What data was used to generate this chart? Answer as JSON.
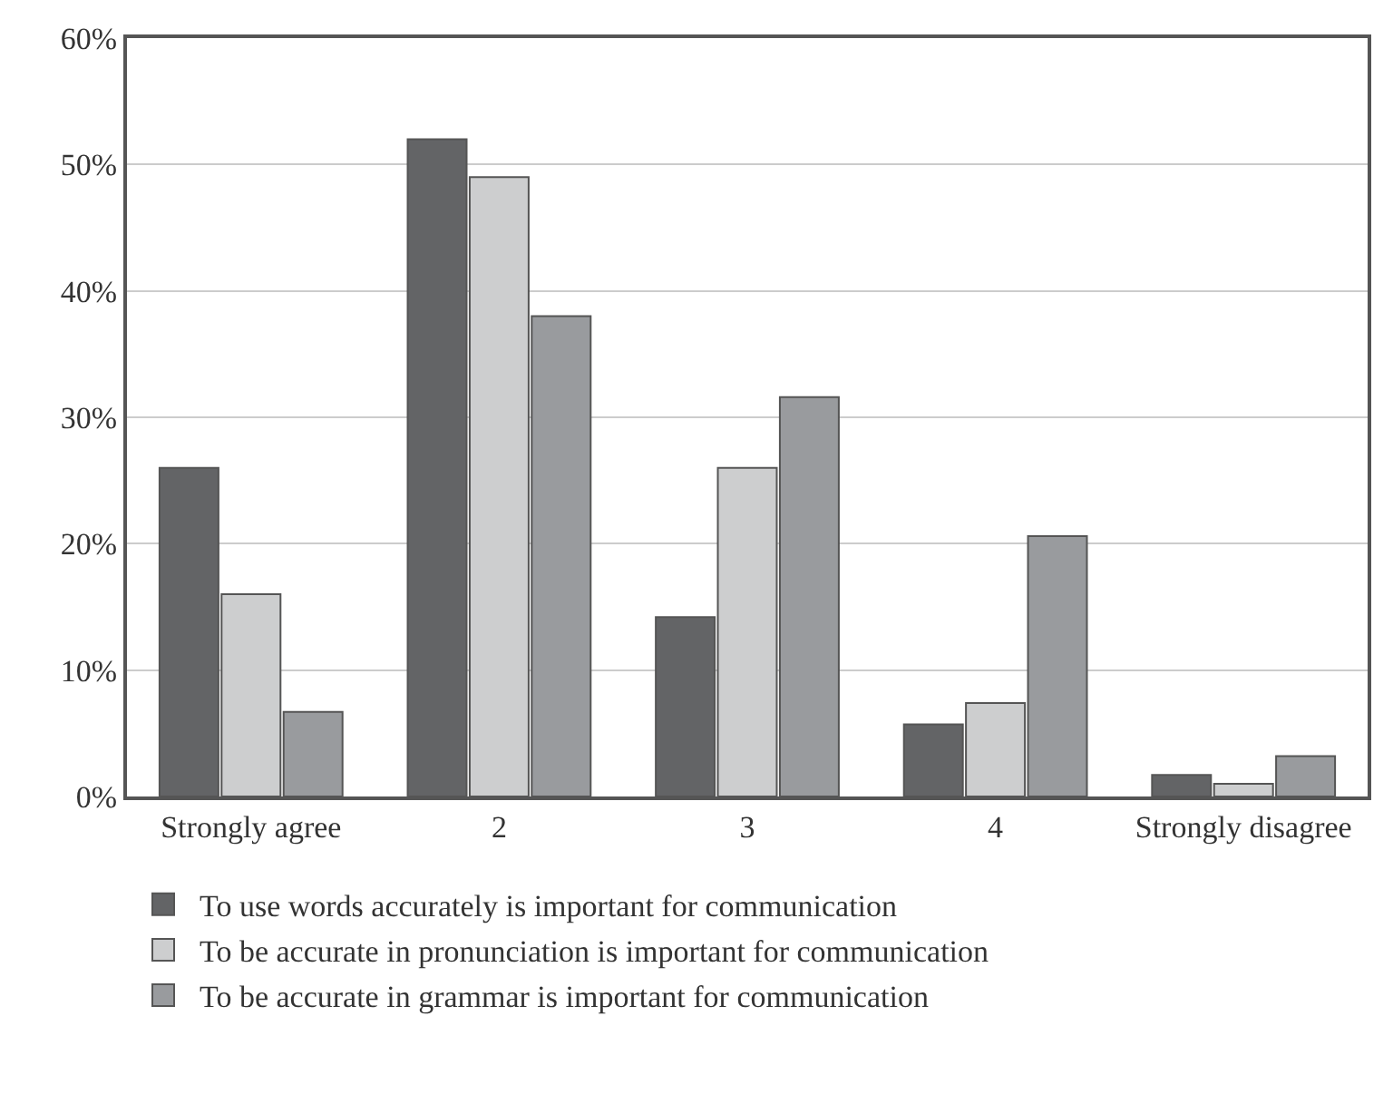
{
  "chart_data": {
    "type": "bar",
    "categories": [
      "Strongly agree",
      "2",
      "3",
      "4",
      "Strongly disagree"
    ],
    "series": [
      {
        "name": "To use words accurately is important for communication",
        "color": "#636466",
        "values": [
          26,
          52,
          14.2,
          5.7,
          1.7
        ]
      },
      {
        "name": "To be accurate in pronunciation is important for communication",
        "color": "#cdcecf",
        "values": [
          16,
          49,
          26,
          7.4,
          1.0
        ]
      },
      {
        "name": "To be accurate in grammar is important for communication",
        "color": "#999b9e",
        "values": [
          6.7,
          38,
          31.6,
          20.6,
          3.2
        ]
      }
    ],
    "ylim": [
      0,
      60
    ],
    "yticks": [
      {
        "value": 0,
        "label": "0%"
      },
      {
        "value": 10,
        "label": "10%"
      },
      {
        "value": 20,
        "label": "20%"
      },
      {
        "value": 30,
        "label": "30%"
      },
      {
        "value": 40,
        "label": "40%"
      },
      {
        "value": 50,
        "label": "50%"
      },
      {
        "value": 60,
        "label": "60%"
      }
    ],
    "grid": "y",
    "legend": "bottom"
  }
}
